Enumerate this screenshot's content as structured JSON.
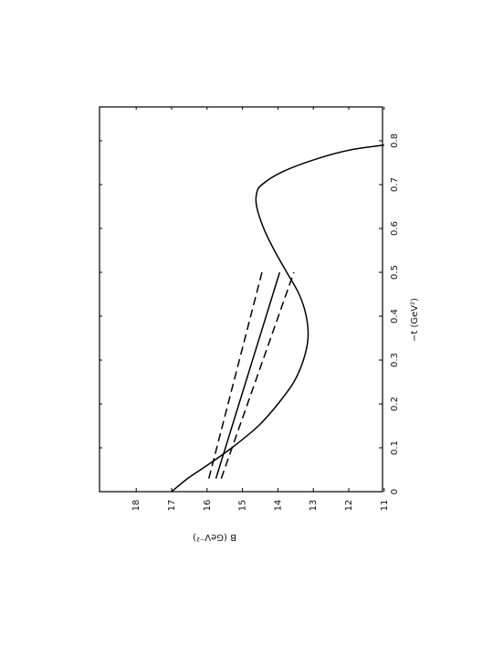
{
  "chart_data": {
    "type": "line",
    "orientation": "rotated 90° counter-clockwise on the page (x axis runs up the right side, B axis along the bottom)",
    "xlabel": "−t (GeV²)",
    "ylabel": "B (GeV⁻²)",
    "xlim": [
      0,
      0.86
    ],
    "ylim": [
      11,
      19
    ],
    "x_ticks": [
      0,
      0.1,
      0.2,
      0.3,
      0.4,
      0.5,
      0.6,
      0.7,
      0.8
    ],
    "x_tick_labels": [
      "0",
      "0.1",
      "0.2",
      "0.3",
      "0.4",
      "0.5",
      "0.6",
      "0.7",
      "0.8"
    ],
    "y_ticks": [
      11,
      12,
      13,
      14,
      15,
      16,
      17,
      18
    ],
    "y_tick_labels": [
      "11",
      "12",
      "13",
      "14",
      "15",
      "16",
      "17",
      "18"
    ],
    "grid": false,
    "legend": "none",
    "series": [
      {
        "style": "solid",
        "points": [
          [
            0,
            17.0
          ],
          [
            0.03,
            16.55
          ],
          [
            0.06,
            16.0
          ],
          [
            0.1,
            15.3
          ],
          [
            0.15,
            14.55
          ],
          [
            0.2,
            14.0
          ],
          [
            0.25,
            13.55
          ],
          [
            0.3,
            13.28
          ],
          [
            0.35,
            13.15
          ],
          [
            0.4,
            13.2
          ],
          [
            0.45,
            13.4
          ],
          [
            0.5,
            13.75
          ],
          [
            0.55,
            14.1
          ],
          [
            0.6,
            14.4
          ],
          [
            0.65,
            14.6
          ],
          [
            0.68,
            14.6
          ],
          [
            0.7,
            14.45
          ],
          [
            0.73,
            13.85
          ],
          [
            0.76,
            12.85
          ],
          [
            0.78,
            11.9
          ],
          [
            0.79,
            11.0
          ]
        ]
      },
      {
        "style": "solid",
        "points": [
          [
            0.03,
            15.75
          ],
          [
            0.5,
            13.95
          ]
        ]
      },
      {
        "style": "dashed",
        "points": [
          [
            0.03,
            15.95
          ],
          [
            0.5,
            14.45
          ]
        ]
      },
      {
        "style": "dashed",
        "points": [
          [
            0.03,
            15.6
          ],
          [
            0.5,
            13.55
          ]
        ]
      }
    ]
  }
}
